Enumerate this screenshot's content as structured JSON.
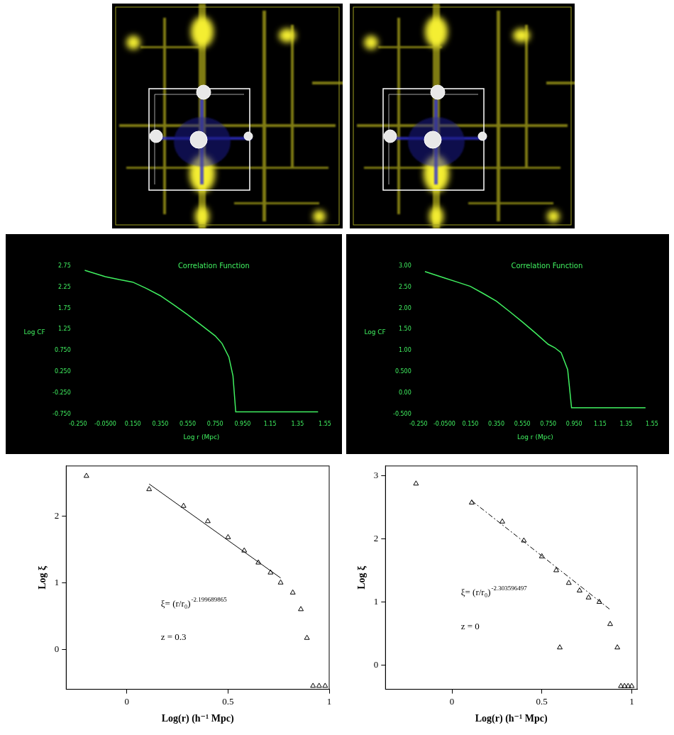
{
  "chart_data": [
    {
      "type": "line",
      "title": "Correlation Function",
      "xlabel": "Log r (Mpc)",
      "ylabel": "Log CF",
      "color": "#40f060",
      "grid": false,
      "x": [
        -0.2,
        -0.05,
        0.05,
        0.15,
        0.25,
        0.35,
        0.45,
        0.55,
        0.65,
        0.75,
        0.8,
        0.85,
        0.88,
        0.9,
        1.0,
        1.2,
        1.5
      ],
      "values": [
        2.65,
        2.5,
        2.43,
        2.37,
        2.22,
        2.05,
        1.83,
        1.6,
        1.35,
        1.1,
        0.92,
        0.6,
        0.15,
        -0.7,
        -0.7,
        -0.7,
        -0.7
      ],
      "xlim": [
        -0.25,
        1.55
      ],
      "xticks": [
        {
          "value": -0.25,
          "label": "-0.250"
        },
        {
          "value": -0.05,
          "label": "-0.0500"
        },
        {
          "value": 0.15,
          "label": "0.150"
        },
        {
          "value": 0.35,
          "label": "0.350"
        },
        {
          "value": 0.55,
          "label": "0.550"
        },
        {
          "value": 0.75,
          "label": "0.750"
        },
        {
          "value": 0.95,
          "label": "0.950"
        },
        1.15,
        1.35,
        1.55
      ],
      "ylim": [
        -0.75,
        2.75
      ],
      "yticks": [
        {
          "value": -0.75,
          "label": "-0.750"
        },
        {
          "value": -0.25,
          "label": "-0.250"
        },
        {
          "value": 0.25,
          "label": "0.250"
        },
        {
          "value": 0.75,
          "label": "0.750"
        },
        1.25,
        1.75,
        2.25,
        2.75
      ]
    },
    {
      "type": "line",
      "title": "Correlation Function",
      "xlabel": "Log r (Mpc)",
      "ylabel": "Log CF",
      "color": "#40f060",
      "grid": false,
      "x": [
        -0.2,
        -0.05,
        0.05,
        0.15,
        0.25,
        0.35,
        0.45,
        0.55,
        0.65,
        0.75,
        0.8,
        0.85,
        0.9,
        0.93,
        1.0,
        1.2,
        1.5
      ],
      "values": [
        2.87,
        2.72,
        2.62,
        2.52,
        2.35,
        2.17,
        1.93,
        1.68,
        1.42,
        1.15,
        1.07,
        0.95,
        0.55,
        -0.35,
        -0.35,
        -0.35,
        -0.35
      ],
      "xlim": [
        -0.25,
        1.55
      ],
      "xticks": [
        {
          "value": -0.25,
          "label": "-0.250"
        },
        {
          "value": -0.05,
          "label": "-0.0500"
        },
        {
          "value": 0.15,
          "label": "0.150"
        },
        {
          "value": 0.35,
          "label": "0.350"
        },
        {
          "value": 0.55,
          "label": "0.550"
        },
        {
          "value": 0.75,
          "label": "0.750"
        },
        {
          "value": 0.95,
          "label": "0.950"
        },
        1.15,
        1.35,
        1.55
      ],
      "ylim": [
        -0.5,
        3.0
      ],
      "yticks": [
        {
          "value": -0.5,
          "label": "-0.500"
        },
        {
          "value": 0,
          "label": "0.00"
        },
        {
          "value": 0.5,
          "label": "0.500"
        },
        {
          "value": 1,
          "label": "1.00"
        },
        {
          "value": 1.5,
          "label": "1.50"
        },
        {
          "value": 2,
          "label": "2.00"
        },
        {
          "value": 2.5,
          "label": "2.50"
        },
        {
          "value": 3,
          "label": "3.00"
        }
      ]
    },
    {
      "type": "scatter",
      "xlabel": "Log(r) (h⁻¹ Mpc)",
      "ylabel": "Log ξ",
      "grid": false,
      "xlim": [
        -0.3,
        1.0
      ],
      "xticks": [
        0,
        0.5,
        1
      ],
      "ylim": [
        -0.6,
        2.75
      ],
      "yticks": [
        0,
        1,
        2
      ],
      "annotations": [
        {
          "text": "ξ= (r/r₀)",
          "superscript": "-2.199689865"
        },
        {
          "text": "z = 0.3"
        }
      ],
      "series": [
        {
          "type": "scatter",
          "marker": "triangle",
          "color": "#000000",
          "x": [
            -0.2,
            0.11,
            0.28,
            0.4,
            0.5,
            0.58,
            0.65,
            0.71,
            0.76,
            0.82,
            0.86,
            0.89,
            0.92,
            0.95,
            0.98
          ],
          "values": [
            2.6,
            2.4,
            2.15,
            1.92,
            1.68,
            1.48,
            1.3,
            1.15,
            1.0,
            0.85,
            0.6,
            0.17,
            -0.55,
            -0.55,
            -0.55
          ]
        },
        {
          "type": "line",
          "line_style": "solid",
          "color": "#000000",
          "x": [
            0.11,
            0.76
          ],
          "values": [
            2.48,
            1.07
          ]
        }
      ]
    },
    {
      "type": "scatter",
      "xlabel": "Log(r) (h⁻¹ Mpc)",
      "ylabel": "Log ξ",
      "grid": false,
      "xlim": [
        -0.37,
        1.03
      ],
      "xticks": [
        0,
        0.5,
        1
      ],
      "ylim": [
        -0.38,
        3.15
      ],
      "yticks": [
        0,
        1,
        2,
        3
      ],
      "annotations": [
        {
          "text": "ξ= (r/r₀)",
          "superscript": "-2.303596497"
        },
        {
          "text": "z = 0"
        }
      ],
      "series": [
        {
          "type": "scatter",
          "marker": "triangle",
          "color": "#000000",
          "x": [
            -0.2,
            0.11,
            0.28,
            0.4,
            0.5,
            0.58,
            0.6,
            0.65,
            0.71,
            0.76,
            0.82,
            0.88,
            0.92,
            0.94,
            0.96,
            0.98,
            1.0
          ],
          "values": [
            2.87,
            2.57,
            2.27,
            1.97,
            1.72,
            1.5,
            0.28,
            1.3,
            1.18,
            1.07,
            1.0,
            0.65,
            0.28,
            -0.33,
            -0.33,
            -0.33,
            -0.33
          ]
        },
        {
          "type": "line",
          "line_style": "dashed",
          "color": "#000000",
          "x": [
            0.11,
            0.88
          ],
          "values": [
            2.6,
            0.88
          ]
        }
      ]
    }
  ]
}
